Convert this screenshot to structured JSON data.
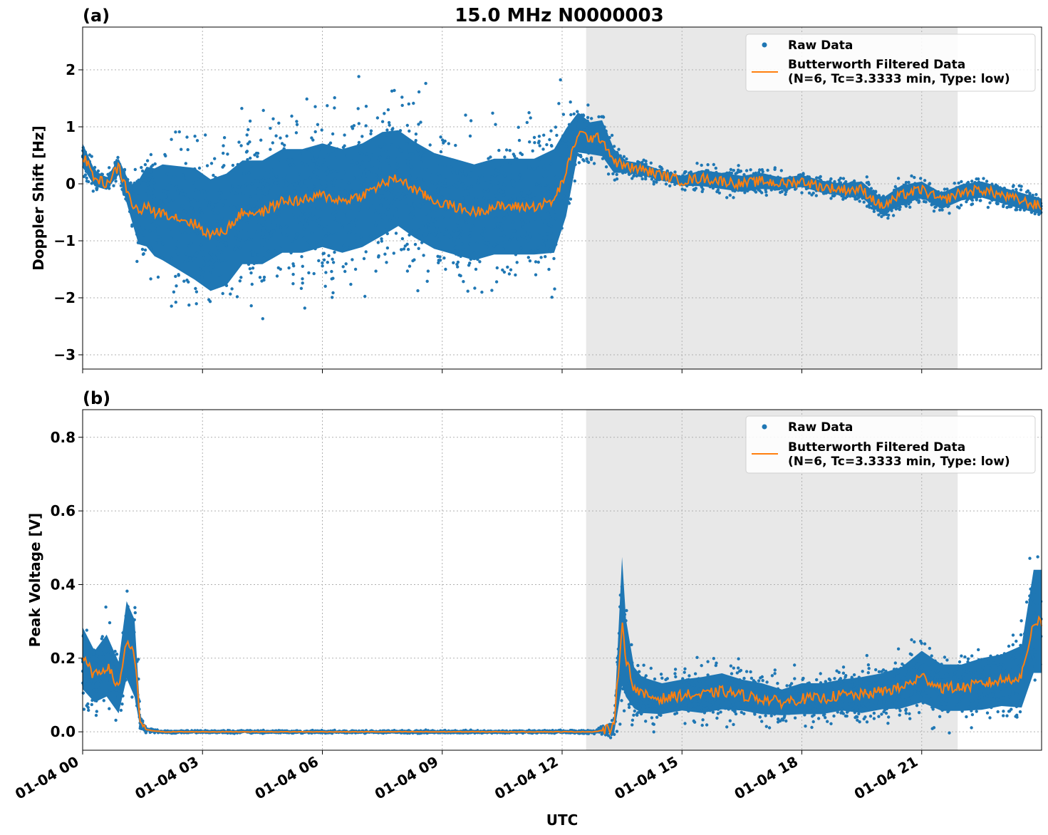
{
  "figure": {
    "title": "15.0 MHz N0000003",
    "xlabel": "UTC",
    "x_ticks": [
      "01-04 00",
      "01-04 03",
      "01-04 06",
      "01-04 09",
      "01-04 12",
      "01-04 15",
      "01-04 18",
      "01-04 21"
    ],
    "x_range_hours": [
      0,
      24
    ],
    "shaded_interval_hours": [
      12.6,
      21.9
    ],
    "colors": {
      "raw": "#1f77b4",
      "filtered": "#ff7f0e",
      "shade": "#e8e8e8",
      "grid": "#b0b0b0"
    },
    "legend": {
      "raw_label": "Raw Data",
      "filtered_label_line1": "Butterworth Filtered Data",
      "filtered_label_line2": "(N=6, Tc=3.3333 min, Type: low)",
      "placement": "upper right"
    },
    "grid": true
  },
  "chart_data": [
    {
      "type": "scatter",
      "panel_label": "(a)",
      "ylabel": "Doppler Shift [Hz]",
      "ylim": [
        -3.25,
        2.75
      ],
      "y_ticks": [
        -3,
        -2,
        -1,
        0,
        1,
        2
      ],
      "x_unit": "hours since 01-04 00 UTC",
      "series": [
        {
          "name": "Raw Data",
          "style": "points",
          "envelope": {
            "x": [
              0,
              0.3,
              0.6,
              0.9,
              1.2,
              1.4,
              1.6,
              1.8,
              2.0,
              2.4,
              2.8,
              3.2,
              3.6,
              4.0,
              4.5,
              5.0,
              5.5,
              6.0,
              6.5,
              7.0,
              7.5,
              7.9,
              8.3,
              8.8,
              9.3,
              9.8,
              10.3,
              10.8,
              11.3,
              11.8,
              12.1,
              12.4,
              12.7,
              13.0,
              13.3,
              13.6,
              14.0,
              14.5,
              15.0,
              15.5,
              16.0,
              16.5,
              17.0,
              17.5,
              18.0,
              18.5,
              19.0,
              19.5,
              20.0,
              20.5,
              21.0,
              21.5,
              22.0,
              22.5,
              23.0,
              23.5,
              24.0
            ],
            "center": [
              0.5,
              0.1,
              0.0,
              0.3,
              -0.3,
              -0.5,
              -0.4,
              -0.5,
              -0.5,
              -0.6,
              -0.7,
              -0.9,
              -0.8,
              -0.5,
              -0.5,
              -0.3,
              -0.3,
              -0.2,
              -0.3,
              -0.2,
              0.0,
              0.1,
              -0.1,
              -0.3,
              -0.4,
              -0.5,
              -0.4,
              -0.4,
              -0.4,
              -0.3,
              0.2,
              0.9,
              0.8,
              0.8,
              0.4,
              0.3,
              0.25,
              0.15,
              0.05,
              0.1,
              0.05,
              0.0,
              0.05,
              0.0,
              0.05,
              -0.05,
              -0.1,
              -0.1,
              -0.4,
              -0.2,
              -0.1,
              -0.3,
              -0.15,
              -0.1,
              -0.2,
              -0.3,
              -0.4
            ],
            "half_width": [
              0.3,
              0.2,
              0.15,
              0.2,
              0.4,
              0.8,
              1.0,
              1.1,
              1.2,
              1.3,
              1.4,
              1.4,
              1.4,
              1.3,
              1.3,
              1.3,
              1.3,
              1.3,
              1.3,
              1.3,
              1.3,
              1.2,
              1.2,
              1.2,
              1.2,
              1.2,
              1.2,
              1.2,
              1.2,
              1.3,
              1.1,
              0.5,
              0.4,
              0.45,
              0.3,
              0.15,
              0.15,
              0.12,
              0.12,
              0.2,
              0.2,
              0.2,
              0.2,
              0.15,
              0.15,
              0.15,
              0.15,
              0.2,
              0.2,
              0.25,
              0.2,
              0.2,
              0.2,
              0.2,
              0.2,
              0.2,
              0.2
            ]
          }
        },
        {
          "name": "Butterworth Filtered Data",
          "style": "line",
          "x": [
            0,
            0.3,
            0.6,
            0.9,
            1.2,
            1.4,
            1.6,
            1.8,
            2.0,
            2.4,
            2.8,
            3.2,
            3.6,
            4.0,
            4.5,
            5.0,
            5.5,
            6.0,
            6.5,
            7.0,
            7.5,
            7.9,
            8.3,
            8.8,
            9.3,
            9.8,
            10.3,
            10.8,
            11.3,
            11.8,
            12.1,
            12.4,
            12.7,
            13.0,
            13.3,
            13.6,
            14.0,
            14.5,
            15.0,
            15.5,
            16.0,
            16.5,
            17.0,
            17.5,
            18.0,
            18.5,
            19.0,
            19.5,
            20.0,
            20.5,
            21.0,
            21.5,
            22.0,
            22.5,
            23.0,
            23.5,
            24.0
          ],
          "y": [
            0.5,
            0.1,
            0.0,
            0.3,
            -0.3,
            -0.5,
            -0.4,
            -0.5,
            -0.5,
            -0.6,
            -0.7,
            -0.9,
            -0.8,
            -0.5,
            -0.5,
            -0.3,
            -0.3,
            -0.2,
            -0.3,
            -0.2,
            0.0,
            0.1,
            -0.1,
            -0.3,
            -0.4,
            -0.5,
            -0.4,
            -0.4,
            -0.4,
            -0.3,
            0.2,
            0.9,
            0.8,
            0.8,
            0.4,
            0.3,
            0.25,
            0.15,
            0.05,
            0.1,
            0.05,
            0.0,
            0.05,
            0.0,
            0.05,
            -0.05,
            -0.1,
            -0.1,
            -0.4,
            -0.2,
            -0.1,
            -0.3,
            -0.15,
            -0.1,
            -0.2,
            -0.3,
            -0.4
          ]
        }
      ]
    },
    {
      "type": "scatter",
      "panel_label": "(b)",
      "ylabel": "Peak Voltage [V]",
      "ylim": [
        -0.05,
        0.875
      ],
      "y_ticks": [
        0.0,
        0.2,
        0.4,
        0.6,
        0.8
      ],
      "x_unit": "hours since 01-04 00 UTC",
      "series": [
        {
          "name": "Raw Data",
          "style": "points",
          "envelope": {
            "x": [
              0,
              0.3,
              0.6,
              0.9,
              1.1,
              1.3,
              1.45,
              1.6,
              2.0,
              4.0,
              8.0,
              12.0,
              12.8,
              13.3,
              13.5,
              13.6,
              13.8,
              14.0,
              14.5,
              15.0,
              15.5,
              16.0,
              16.5,
              17.0,
              17.5,
              18.0,
              18.5,
              19.0,
              19.5,
              20.0,
              20.5,
              21.0,
              21.5,
              22.0,
              22.5,
              23.0,
              23.5,
              23.8,
              24.0
            ],
            "center": [
              0.2,
              0.15,
              0.18,
              0.12,
              0.25,
              0.2,
              0.02,
              0.005,
              0.0,
              0.0,
              0.0,
              0.0,
              0.0,
              0.01,
              0.3,
              0.2,
              0.12,
              0.1,
              0.09,
              0.1,
              0.1,
              0.11,
              0.1,
              0.09,
              0.08,
              0.09,
              0.09,
              0.1,
              0.1,
              0.11,
              0.12,
              0.15,
              0.12,
              0.12,
              0.13,
              0.14,
              0.15,
              0.3,
              0.3
            ],
            "half_width": [
              0.12,
              0.1,
              0.12,
              0.1,
              0.15,
              0.15,
              0.02,
              0.005,
              0.003,
              0.003,
              0.003,
              0.003,
              0.005,
              0.02,
              0.25,
              0.15,
              0.08,
              0.07,
              0.06,
              0.06,
              0.07,
              0.07,
              0.06,
              0.06,
              0.05,
              0.06,
              0.06,
              0.06,
              0.07,
              0.07,
              0.08,
              0.1,
              0.09,
              0.09,
              0.1,
              0.1,
              0.12,
              0.2,
              0.2
            ]
          }
        },
        {
          "name": "Butterworth Filtered Data",
          "style": "line",
          "x": [
            0,
            0.3,
            0.6,
            0.9,
            1.1,
            1.3,
            1.45,
            1.6,
            2.0,
            4.0,
            8.0,
            12.0,
            12.8,
            13.3,
            13.5,
            13.6,
            13.8,
            14.0,
            14.5,
            15.0,
            15.5,
            16.0,
            16.5,
            17.0,
            17.5,
            18.0,
            18.5,
            19.0,
            19.5,
            20.0,
            20.5,
            21.0,
            21.5,
            22.0,
            22.5,
            23.0,
            23.5,
            23.8,
            24.0
          ],
          "y": [
            0.2,
            0.15,
            0.18,
            0.12,
            0.25,
            0.2,
            0.02,
            0.005,
            0.0,
            0.0,
            0.0,
            0.0,
            0.0,
            0.01,
            0.3,
            0.2,
            0.12,
            0.1,
            0.09,
            0.1,
            0.1,
            0.11,
            0.1,
            0.09,
            0.08,
            0.09,
            0.09,
            0.1,
            0.1,
            0.11,
            0.12,
            0.15,
            0.12,
            0.12,
            0.13,
            0.14,
            0.15,
            0.3,
            0.3
          ]
        }
      ]
    }
  ]
}
